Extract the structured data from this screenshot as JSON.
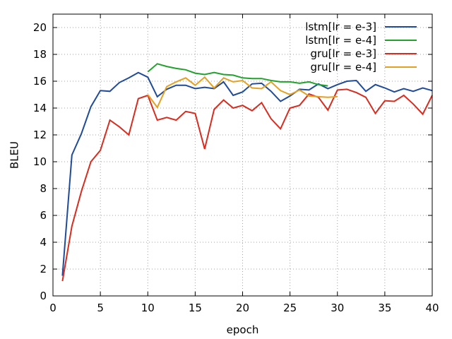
{
  "chart_data": {
    "type": "line",
    "title": "",
    "xlabel": "epoch",
    "ylabel": "BLEU",
    "xlim": [
      0,
      40
    ],
    "ylim": [
      0,
      21
    ],
    "xticks": [
      0,
      5,
      10,
      15,
      20,
      25,
      30,
      35,
      40
    ],
    "yticks": [
      0,
      2,
      4,
      6,
      8,
      10,
      12,
      14,
      16,
      18,
      20
    ],
    "grid": true,
    "legend_position": "top-right",
    "series": [
      {
        "name": "lstm[lr = e-3]",
        "color": "#1f4b99",
        "x": [
          1,
          2,
          3,
          4,
          5,
          6,
          7,
          8,
          9,
          10,
          11,
          12,
          13,
          14,
          15,
          16,
          17,
          18,
          19,
          20,
          21,
          22,
          23,
          24,
          25,
          26,
          27,
          28,
          29,
          30,
          31,
          32,
          33,
          34,
          35,
          36,
          37,
          38,
          39,
          40
        ],
        "y": [
          1.5,
          10.5,
          12.1,
          14.1,
          15.3,
          15.25,
          15.9,
          16.25,
          16.65,
          16.3,
          14.85,
          15.4,
          15.7,
          15.7,
          15.45,
          15.55,
          15.45,
          15.95,
          14.95,
          15.2,
          15.8,
          15.85,
          15.25,
          14.5,
          14.9,
          15.4,
          15.35,
          15.8,
          15.45,
          15.75,
          16.0,
          16.05,
          15.25,
          15.75,
          15.5,
          15.2,
          15.45,
          15.25,
          15.5,
          15.3
        ]
      },
      {
        "name": "lstm[lr = e-4]",
        "color": "#22a22d",
        "x": [
          10,
          11,
          12,
          13,
          14,
          15,
          16,
          17,
          18,
          19,
          20,
          21,
          22,
          23,
          24,
          25,
          26,
          27,
          28,
          29
        ],
        "y": [
          16.7,
          17.3,
          17.1,
          16.95,
          16.85,
          16.6,
          16.5,
          16.65,
          16.5,
          16.45,
          16.25,
          16.2,
          16.2,
          16.05,
          15.95,
          15.95,
          15.85,
          15.95,
          15.75,
          15.65
        ]
      },
      {
        "name": "gru[lr = e-3]",
        "color": "#d62d20",
        "x": [
          1,
          2,
          3,
          4,
          5,
          6,
          7,
          8,
          9,
          10,
          11,
          12,
          13,
          14,
          15,
          16,
          17,
          18,
          19,
          20,
          21,
          22,
          23,
          24,
          25,
          26,
          27,
          28,
          29,
          30,
          31,
          32,
          33,
          34,
          35,
          36,
          37,
          38,
          39,
          40
        ],
        "y": [
          1.1,
          5.2,
          7.8,
          10.0,
          10.85,
          13.1,
          12.6,
          12.0,
          14.7,
          14.95,
          13.1,
          13.3,
          13.1,
          13.75,
          13.6,
          10.95,
          13.9,
          14.6,
          14.0,
          14.2,
          13.8,
          14.4,
          13.2,
          12.45,
          14.0,
          14.2,
          15.05,
          14.8,
          13.85,
          15.35,
          15.4,
          15.15,
          14.8,
          13.6,
          14.55,
          14.5,
          14.95,
          14.3,
          13.55,
          14.95
        ]
      },
      {
        "name": "gru[lr = e-4]",
        "color": "#e5a020",
        "x": [
          10,
          11,
          12,
          13,
          14,
          15,
          16,
          17,
          18,
          19,
          20,
          21,
          22,
          23,
          24,
          25,
          26,
          27,
          28,
          29,
          30
        ],
        "y": [
          15.0,
          14.05,
          15.6,
          15.95,
          16.25,
          15.7,
          16.3,
          15.5,
          16.25,
          15.95,
          16.05,
          15.5,
          15.45,
          15.95,
          15.3,
          15.0,
          15.35,
          14.9,
          14.85,
          14.8,
          14.85
        ]
      }
    ]
  }
}
